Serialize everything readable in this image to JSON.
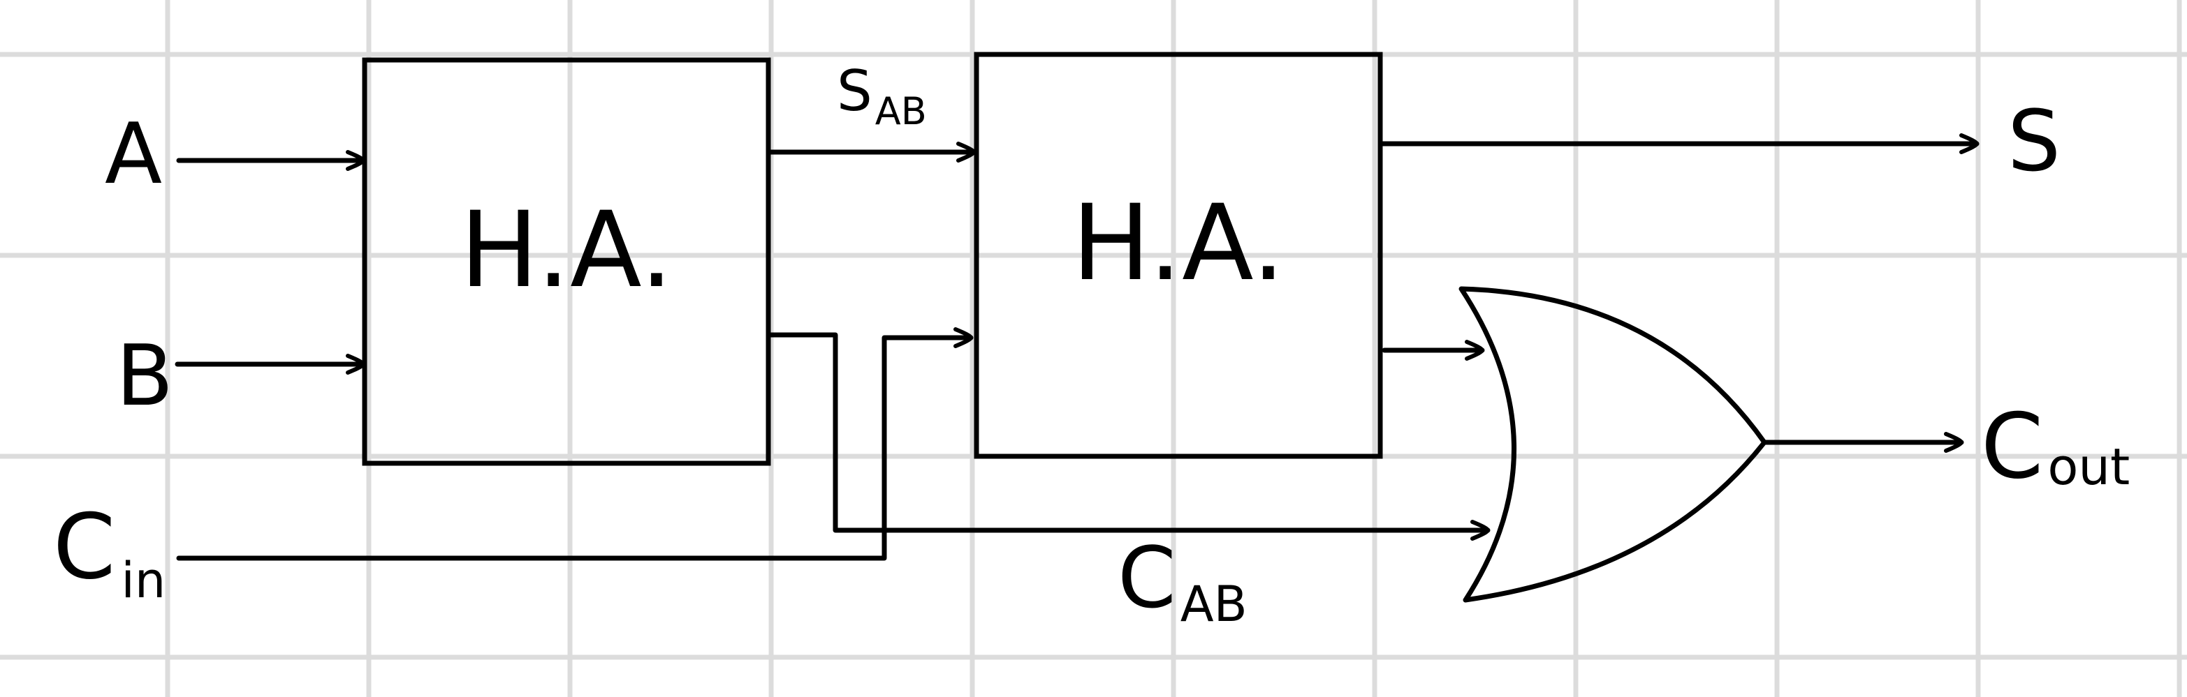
{
  "diagram": {
    "inputs": {
      "a": "A",
      "b": "B",
      "cin_main": "C",
      "cin_sub": "in"
    },
    "blocks": {
      "half_adder_1": "H.A.",
      "half_adder_2": "H.A."
    },
    "signals": {
      "sab_main": "S",
      "sab_sub": "AB",
      "cab_main": "C",
      "cab_sub": "AB"
    },
    "outputs": {
      "s": "S",
      "cout_main": "C",
      "cout_sub": "out"
    }
  }
}
